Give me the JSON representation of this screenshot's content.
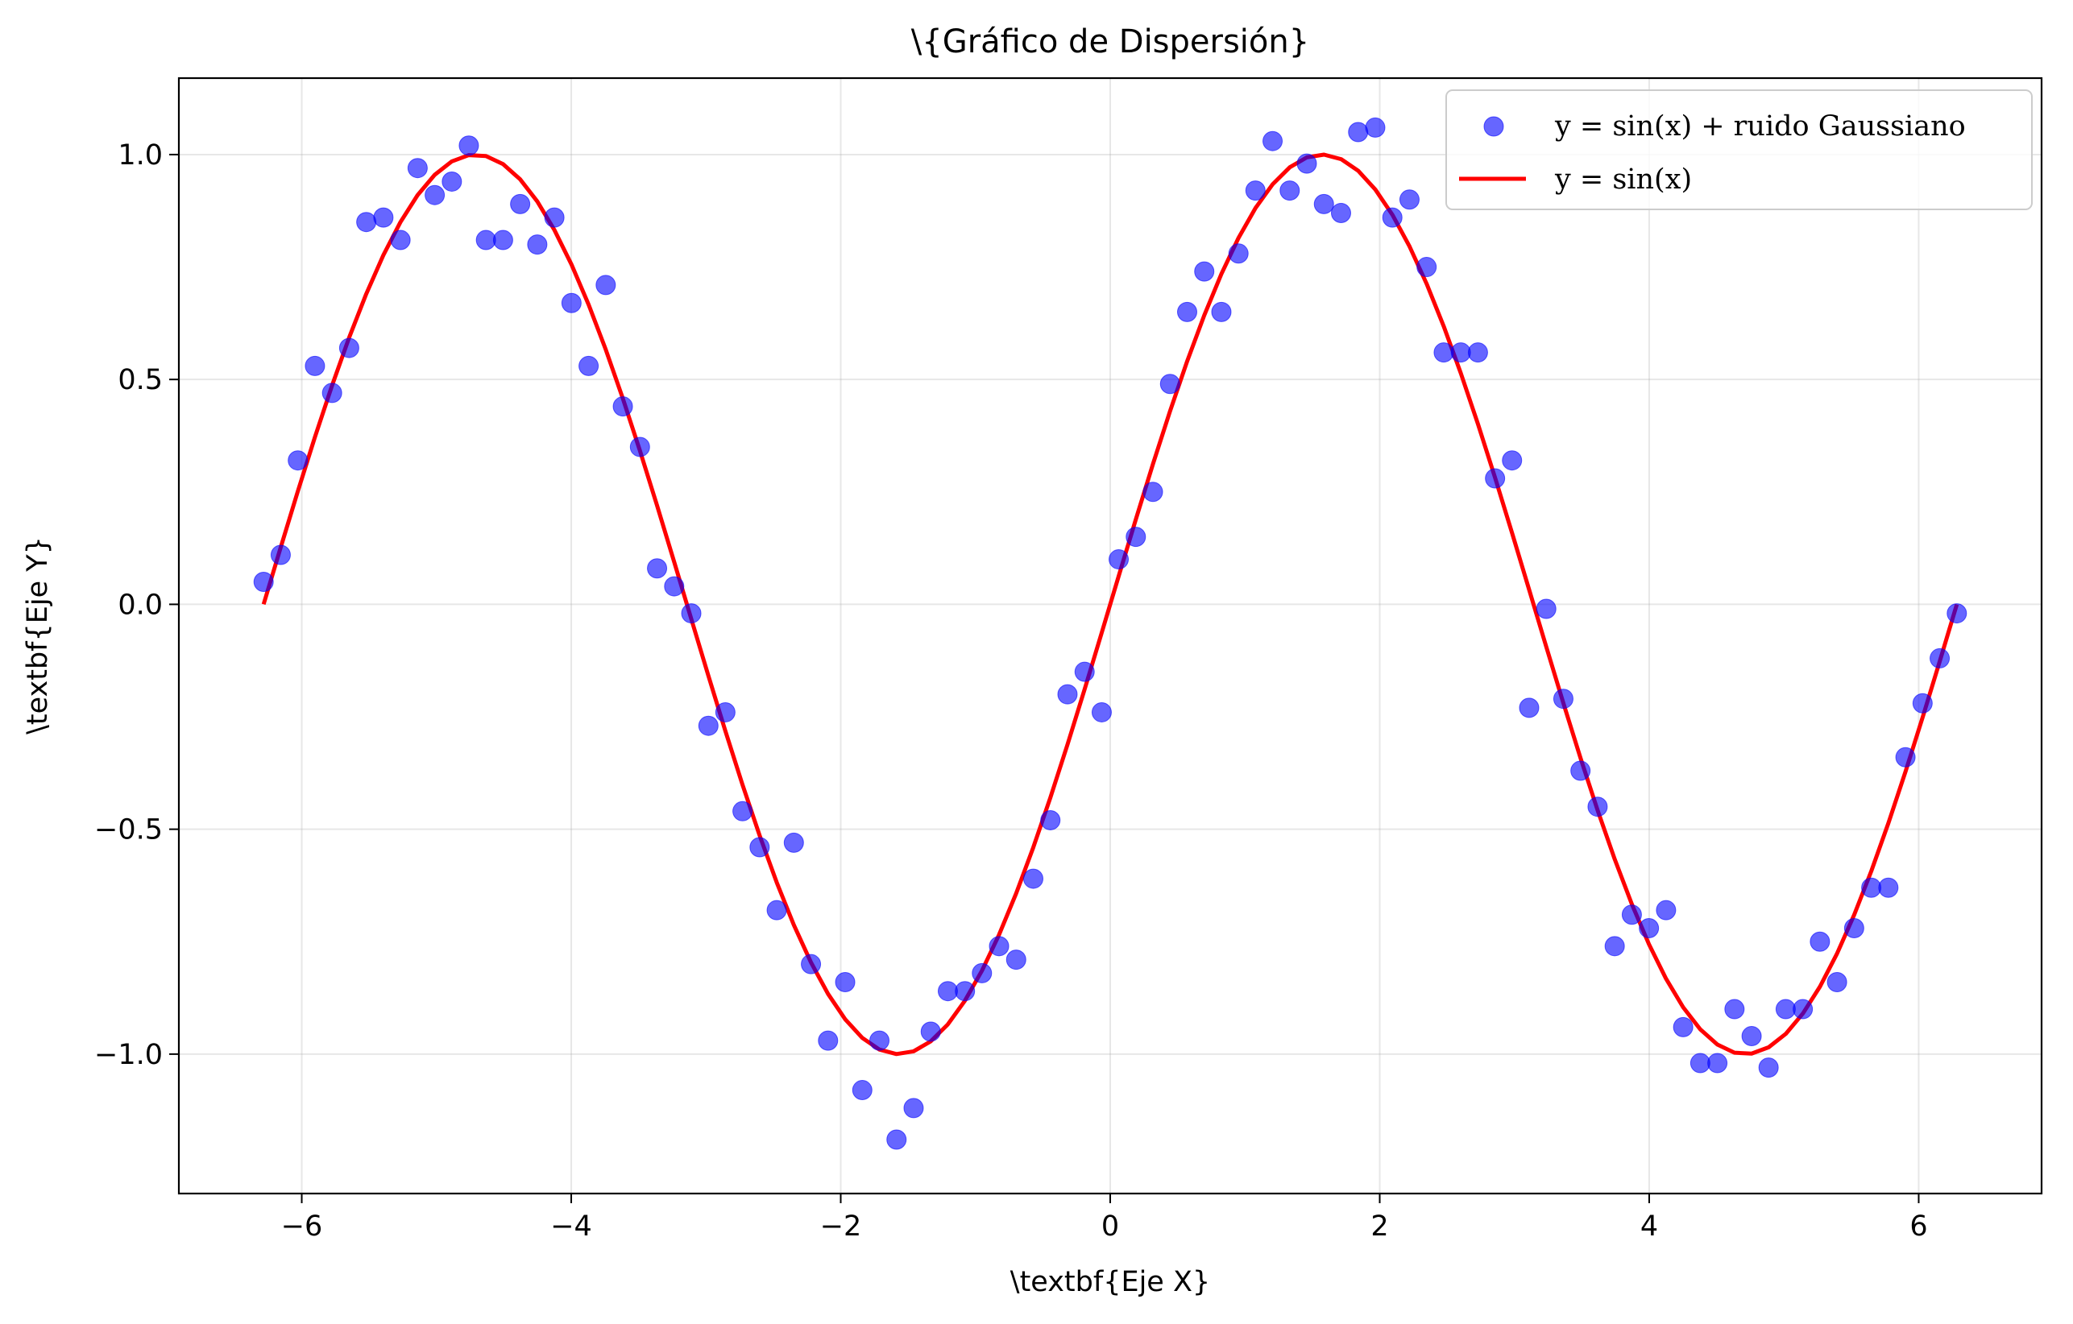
{
  "chart_data": {
    "type": "scatter",
    "title": "\\{Gráfico de Dispersión}",
    "xlabel": "\\textbf{Eje X}",
    "ylabel": "\\textbf{Eje Y}",
    "xlim": [
      -6.912,
      6.912
    ],
    "ylim": [
      -1.31,
      1.17
    ],
    "xticks": [
      -6,
      -4,
      -2,
      0,
      2,
      4,
      6
    ],
    "xtick_labels": [
      "−6",
      "−4",
      "−2",
      "0",
      "2",
      "4",
      "6"
    ],
    "yticks": [
      -1.0,
      -0.5,
      0.0,
      0.5,
      1.0
    ],
    "ytick_labels": [
      "−1.0",
      "−0.5",
      "0.0",
      "0.5",
      "1.0"
    ],
    "grid": true,
    "legend_placement": "top-right",
    "series": [
      {
        "name": "y = sin(x) + ruido Gaussiano",
        "type": "scatter",
        "color": "#0000ff",
        "alpha": 0.6,
        "x": [
          -6.283,
          -6.156,
          -6.029,
          -5.902,
          -5.775,
          -5.648,
          -5.521,
          -5.394,
          -5.267,
          -5.14,
          -5.013,
          -4.886,
          -4.76,
          -4.633,
          -4.506,
          -4.379,
          -4.252,
          -4.125,
          -3.998,
          -3.871,
          -3.744,
          -3.617,
          -3.49,
          -3.363,
          -3.236,
          -3.109,
          -2.982,
          -2.856,
          -2.729,
          -2.602,
          -2.475,
          -2.348,
          -2.221,
          -2.094,
          -1.967,
          -1.84,
          -1.713,
          -1.586,
          -1.459,
          -1.332,
          -1.205,
          -1.078,
          -0.952,
          -0.825,
          -0.698,
          -0.571,
          -0.444,
          -0.317,
          -0.19,
          -0.063,
          0.063,
          0.19,
          0.317,
          0.444,
          0.571,
          0.698,
          0.825,
          0.952,
          1.078,
          1.205,
          1.332,
          1.459,
          1.586,
          1.713,
          1.84,
          1.967,
          2.094,
          2.221,
          2.348,
          2.475,
          2.602,
          2.729,
          2.856,
          2.982,
          3.109,
          3.236,
          3.363,
          3.49,
          3.617,
          3.744,
          3.871,
          3.998,
          4.125,
          4.252,
          4.379,
          4.506,
          4.633,
          4.76,
          4.886,
          5.013,
          5.14,
          5.267,
          5.394,
          5.521,
          5.648,
          5.775,
          5.902,
          6.029,
          6.156,
          6.283
        ],
        "y": [
          0.05,
          0.11,
          0.32,
          0.53,
          0.47,
          0.57,
          0.85,
          0.86,
          0.81,
          0.97,
          0.91,
          0.94,
          1.02,
          0.81,
          0.81,
          0.89,
          0.8,
          0.86,
          0.67,
          0.53,
          0.71,
          0.44,
          0.35,
          0.08,
          0.04,
          -0.02,
          -0.27,
          -0.24,
          -0.46,
          -0.54,
          -0.68,
          -0.53,
          -0.8,
          -0.97,
          -0.84,
          -1.08,
          -0.97,
          -1.19,
          -1.12,
          -0.95,
          -0.86,
          -0.86,
          -0.82,
          -0.76,
          -0.79,
          -0.61,
          -0.48,
          -0.2,
          -0.15,
          -0.24,
          0.1,
          0.15,
          0.25,
          0.49,
          0.65,
          0.74,
          0.65,
          0.78,
          0.92,
          1.03,
          0.92,
          0.98,
          0.89,
          0.87,
          1.05,
          1.06,
          0.86,
          0.9,
          0.75,
          0.56,
          0.56,
          0.56,
          0.28,
          0.32,
          -0.23,
          -0.01,
          -0.21,
          -0.37,
          -0.45,
          -0.76,
          -0.69,
          -0.72,
          -0.68,
          -0.94,
          -1.02,
          -1.02,
          -0.9,
          -0.96,
          -1.03,
          -0.9,
          -0.9,
          -0.75,
          -0.84,
          -0.72,
          -0.63,
          -0.63,
          -0.34,
          -0.22,
          -0.12,
          -0.02
        ]
      },
      {
        "name": "y = sin(x)",
        "type": "line",
        "color": "#ff0000",
        "x_range": [
          -6.283,
          6.283
        ],
        "function": "sin(x)"
      }
    ]
  }
}
